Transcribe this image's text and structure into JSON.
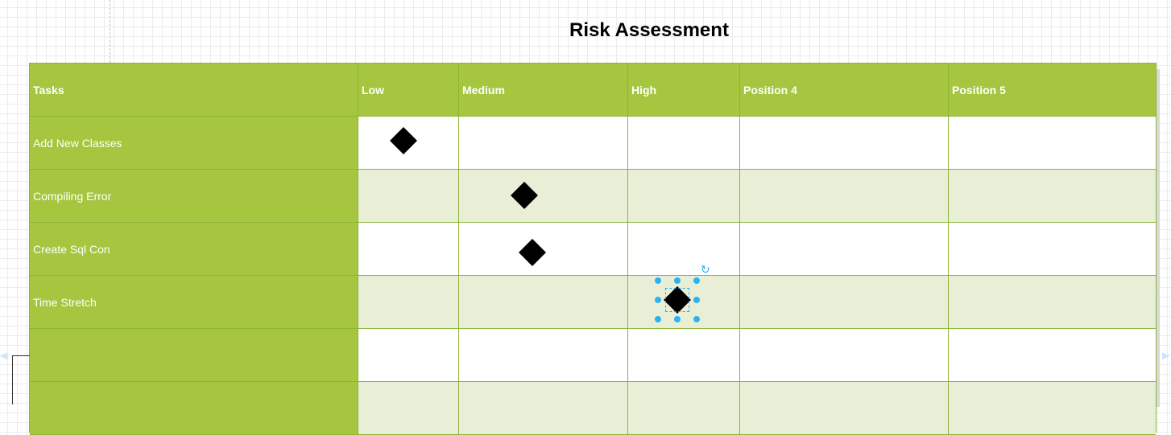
{
  "title": "Risk Assessment",
  "columns": [
    "Tasks",
    "Low",
    "Medium",
    "High",
    "Position 4",
    "Position 5"
  ],
  "rows": [
    {
      "task": "Add New Classes",
      "risk_column": "Low"
    },
    {
      "task": "Compiling Error",
      "risk_column": "Medium"
    },
    {
      "task": "Create Sql Con",
      "risk_column": "Medium"
    },
    {
      "task": "Time Stretch",
      "risk_column": "High",
      "selected": true
    },
    {
      "task": "",
      "risk_column": ""
    },
    {
      "task": "",
      "risk_column": ""
    }
  ],
  "icons": {
    "marker": "diamond-marker-icon",
    "rotate": "rotate-handle-icon"
  },
  "colors": {
    "header_green": "#a6c63f",
    "row_alt": "#e9efd6",
    "border": "#8cb437",
    "selection": "#29b3f2"
  }
}
